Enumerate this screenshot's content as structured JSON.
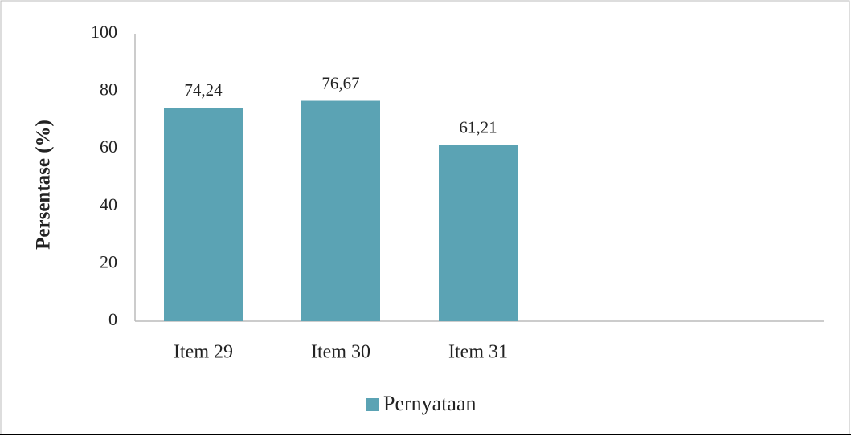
{
  "chart_data": {
    "type": "bar",
    "y_label": "Persentase (%)",
    "categories": [
      "Item 29",
      "Item 30",
      "Item 31"
    ],
    "series": [
      {
        "name": "Pernyataan",
        "color": "#5ba3b4",
        "values": [
          74.24,
          76.67,
          61.21
        ],
        "value_labels": [
          "74,24",
          "76,67",
          "61,21"
        ]
      }
    ],
    "ylim": [
      0,
      100
    ],
    "yticks": [
      0,
      20,
      40,
      60,
      80,
      100
    ],
    "grid": false,
    "legend": "bottom"
  }
}
